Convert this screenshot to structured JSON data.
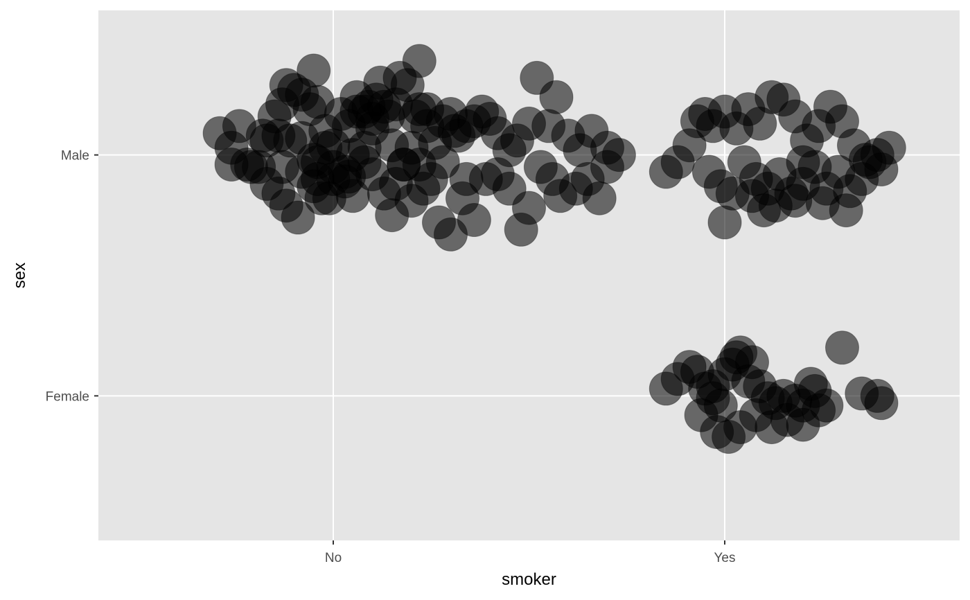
{
  "chart_data": {
    "type": "scatter",
    "title": "",
    "xlabel": "smoker",
    "ylabel": "sex",
    "x_categories": [
      "No",
      "Yes"
    ],
    "y_categories": [
      "Female",
      "Male"
    ],
    "x_range": [
      0.4,
      2.6
    ],
    "y_range": [
      0.4,
      2.6
    ],
    "grid": true,
    "colors": {
      "panel": "#e5e5e5",
      "grid": "#ffffff",
      "point": "#000000",
      "point_opacity": 0.55
    },
    "points": [
      {
        "x": 0.71,
        "y": 2.09
      },
      {
        "x": 0.74,
        "y": 1.96
      },
      {
        "x": 0.76,
        "y": 2.12
      },
      {
        "x": 0.82,
        "y": 2.08
      },
      {
        "x": 0.85,
        "y": 2.16
      },
      {
        "x": 0.87,
        "y": 2.21
      },
      {
        "x": 0.88,
        "y": 2.29
      },
      {
        "x": 0.9,
        "y": 2.27
      },
      {
        "x": 0.92,
        "y": 2.25
      },
      {
        "x": 0.94,
        "y": 2.19
      },
      {
        "x": 0.95,
        "y": 2.35
      },
      {
        "x": 0.96,
        "y": 2.22
      },
      {
        "x": 0.98,
        "y": 2.1
      },
      {
        "x": 1.0,
        "y": 2.04
      },
      {
        "x": 1.02,
        "y": 2.17
      },
      {
        "x": 1.04,
        "y": 2.12
      },
      {
        "x": 1.06,
        "y": 2.18
      },
      {
        "x": 1.08,
        "y": 2.03
      },
      {
        "x": 1.1,
        "y": 2.11
      },
      {
        "x": 1.12,
        "y": 2.3
      },
      {
        "x": 1.14,
        "y": 2.16
      },
      {
        "x": 1.17,
        "y": 2.32
      },
      {
        "x": 1.19,
        "y": 2.29
      },
      {
        "x": 1.22,
        "y": 2.39
      },
      {
        "x": 1.24,
        "y": 2.19
      },
      {
        "x": 1.26,
        "y": 2.05
      },
      {
        "x": 1.28,
        "y": 2.14
      },
      {
        "x": 1.3,
        "y": 2.17
      },
      {
        "x": 1.32,
        "y": 2.08
      },
      {
        "x": 1.34,
        "y": 2.12
      },
      {
        "x": 1.36,
        "y": 2.14
      },
      {
        "x": 1.38,
        "y": 2.18
      },
      {
        "x": 1.4,
        "y": 2.15
      },
      {
        "x": 1.42,
        "y": 2.09
      },
      {
        "x": 1.45,
        "y": 2.02
      },
      {
        "x": 1.47,
        "y": 2.06
      },
      {
        "x": 1.5,
        "y": 2.13
      },
      {
        "x": 1.52,
        "y": 2.32
      },
      {
        "x": 1.55,
        "y": 2.12
      },
      {
        "x": 1.57,
        "y": 2.24
      },
      {
        "x": 1.6,
        "y": 2.08
      },
      {
        "x": 1.63,
        "y": 2.02
      },
      {
        "x": 1.66,
        "y": 2.1
      },
      {
        "x": 1.7,
        "y": 2.03
      },
      {
        "x": 1.73,
        "y": 2.0
      },
      {
        "x": 0.78,
        "y": 1.96
      },
      {
        "x": 0.83,
        "y": 1.88
      },
      {
        "x": 0.88,
        "y": 1.79
      },
      {
        "x": 0.91,
        "y": 1.74
      },
      {
        "x": 0.95,
        "y": 1.87
      },
      {
        "x": 0.97,
        "y": 1.82
      },
      {
        "x": 1.0,
        "y": 1.95
      },
      {
        "x": 1.03,
        "y": 1.89
      },
      {
        "x": 1.05,
        "y": 1.83
      },
      {
        "x": 1.08,
        "y": 1.97
      },
      {
        "x": 1.1,
        "y": 1.92
      },
      {
        "x": 1.13,
        "y": 1.84
      },
      {
        "x": 1.16,
        "y": 1.88
      },
      {
        "x": 1.18,
        "y": 1.96
      },
      {
        "x": 1.2,
        "y": 1.81
      },
      {
        "x": 1.23,
        "y": 1.86
      },
      {
        "x": 1.27,
        "y": 1.72
      },
      {
        "x": 1.3,
        "y": 1.67
      },
      {
        "x": 1.33,
        "y": 1.82
      },
      {
        "x": 1.36,
        "y": 1.73
      },
      {
        "x": 1.39,
        "y": 1.9
      },
      {
        "x": 1.42,
        "y": 1.92
      },
      {
        "x": 1.45,
        "y": 1.86
      },
      {
        "x": 1.48,
        "y": 1.69
      },
      {
        "x": 1.5,
        "y": 1.78
      },
      {
        "x": 1.53,
        "y": 1.95
      },
      {
        "x": 1.56,
        "y": 1.9
      },
      {
        "x": 1.58,
        "y": 1.83
      },
      {
        "x": 1.62,
        "y": 1.86
      },
      {
        "x": 1.65,
        "y": 1.9
      },
      {
        "x": 1.68,
        "y": 1.82
      },
      {
        "x": 1.7,
        "y": 1.95
      },
      {
        "x": 0.86,
        "y": 1.84
      },
      {
        "x": 0.92,
        "y": 1.93
      },
      {
        "x": 1.15,
        "y": 1.75
      },
      {
        "x": 1.85,
        "y": 1.93
      },
      {
        "x": 1.88,
        "y": 1.97
      },
      {
        "x": 1.91,
        "y": 2.04
      },
      {
        "x": 1.93,
        "y": 2.14
      },
      {
        "x": 1.95,
        "y": 2.17
      },
      {
        "x": 1.97,
        "y": 2.12
      },
      {
        "x": 2.0,
        "y": 2.18
      },
      {
        "x": 2.03,
        "y": 2.11
      },
      {
        "x": 2.06,
        "y": 2.19
      },
      {
        "x": 2.09,
        "y": 2.13
      },
      {
        "x": 2.12,
        "y": 2.24
      },
      {
        "x": 2.15,
        "y": 2.23
      },
      {
        "x": 2.18,
        "y": 2.16
      },
      {
        "x": 2.21,
        "y": 2.06
      },
      {
        "x": 2.24,
        "y": 2.12
      },
      {
        "x": 2.27,
        "y": 2.2
      },
      {
        "x": 2.3,
        "y": 2.14
      },
      {
        "x": 2.33,
        "y": 2.04
      },
      {
        "x": 2.36,
        "y": 1.98
      },
      {
        "x": 2.39,
        "y": 2.0
      },
      {
        "x": 2.42,
        "y": 2.03
      },
      {
        "x": 1.96,
        "y": 1.93
      },
      {
        "x": 1.99,
        "y": 1.87
      },
      {
        "x": 2.02,
        "y": 1.84
      },
      {
        "x": 2.05,
        "y": 1.97
      },
      {
        "x": 2.08,
        "y": 1.9
      },
      {
        "x": 2.11,
        "y": 1.86
      },
      {
        "x": 2.14,
        "y": 1.92
      },
      {
        "x": 2.17,
        "y": 1.84
      },
      {
        "x": 2.2,
        "y": 1.88
      },
      {
        "x": 2.23,
        "y": 1.95
      },
      {
        "x": 2.26,
        "y": 1.86
      },
      {
        "x": 2.29,
        "y": 1.93
      },
      {
        "x": 2.32,
        "y": 1.85
      },
      {
        "x": 2.35,
        "y": 1.9
      },
      {
        "x": 2.37,
        "y": 1.97
      },
      {
        "x": 2.4,
        "y": 1.94
      },
      {
        "x": 2.0,
        "y": 1.72
      },
      {
        "x": 2.1,
        "y": 1.77
      },
      {
        "x": 2.13,
        "y": 1.79
      },
      {
        "x": 2.25,
        "y": 1.8
      },
      {
        "x": 2.31,
        "y": 1.77
      },
      {
        "x": 2.18,
        "y": 1.81
      },
      {
        "x": 2.07,
        "y": 1.83
      },
      {
        "x": 2.2,
        "y": 1.97
      },
      {
        "x": 0.74,
        "y": 2.03
      },
      {
        "x": 0.79,
        "y": 1.95
      },
      {
        "x": 0.83,
        "y": 2.06
      },
      {
        "x": 0.86,
        "y": 2.08
      },
      {
        "x": 0.89,
        "y": 2.06
      },
      {
        "x": 0.92,
        "y": 2.07
      },
      {
        "x": 0.95,
        "y": 1.98
      },
      {
        "x": 0.98,
        "y": 2.03
      },
      {
        "x": 1.0,
        "y": 1.9
      },
      {
        "x": 1.03,
        "y": 1.93
      },
      {
        "x": 1.06,
        "y": 2.24
      },
      {
        "x": 1.08,
        "y": 2.18
      },
      {
        "x": 1.1,
        "y": 2.15
      },
      {
        "x": 1.13,
        "y": 2.2
      },
      {
        "x": 1.15,
        "y": 2.04
      },
      {
        "x": 1.18,
        "y": 1.96
      },
      {
        "x": 1.2,
        "y": 2.03
      },
      {
        "x": 1.22,
        "y": 1.96
      },
      {
        "x": 1.25,
        "y": 1.9
      },
      {
        "x": 1.28,
        "y": 1.97
      },
      {
        "x": 1.31,
        "y": 2.1
      },
      {
        "x": 0.96,
        "y": 1.97
      },
      {
        "x": 1.05,
        "y": 2.0
      },
      {
        "x": 1.16,
        "y": 2.21
      },
      {
        "x": 1.21,
        "y": 2.16
      },
      {
        "x": 1.11,
        "y": 2.23
      },
      {
        "x": 1.09,
        "y": 2.2
      },
      {
        "x": 1.22,
        "y": 2.19
      },
      {
        "x": 1.34,
        "y": 1.9
      },
      {
        "x": 1.04,
        "y": 1.91
      },
      {
        "x": 0.96,
        "y": 1.9
      },
      {
        "x": 0.87,
        "y": 1.95
      },
      {
        "x": 0.99,
        "y": 1.82
      },
      {
        "x": 0.81,
        "y": 1.95
      },
      {
        "x": 1.24,
        "y": 2.12
      },
      {
        "x": 1.85,
        "y": 1.03
      },
      {
        "x": 1.88,
        "y": 1.07
      },
      {
        "x": 1.91,
        "y": 1.12
      },
      {
        "x": 1.93,
        "y": 1.1
      },
      {
        "x": 1.95,
        "y": 1.03
      },
      {
        "x": 1.97,
        "y": 0.99
      },
      {
        "x": 1.99,
        "y": 0.96
      },
      {
        "x": 2.02,
        "y": 1.13
      },
      {
        "x": 2.04,
        "y": 1.18
      },
      {
        "x": 2.06,
        "y": 1.06
      },
      {
        "x": 2.09,
        "y": 1.04
      },
      {
        "x": 2.11,
        "y": 0.99
      },
      {
        "x": 2.13,
        "y": 0.97
      },
      {
        "x": 2.15,
        "y": 1.0
      },
      {
        "x": 2.18,
        "y": 0.98
      },
      {
        "x": 2.2,
        "y": 0.96
      },
      {
        "x": 2.23,
        "y": 1.02
      },
      {
        "x": 2.26,
        "y": 0.96
      },
      {
        "x": 2.3,
        "y": 1.2
      },
      {
        "x": 2.35,
        "y": 1.01
      },
      {
        "x": 2.39,
        "y": 1.0
      },
      {
        "x": 2.4,
        "y": 0.97
      },
      {
        "x": 1.94,
        "y": 0.92
      },
      {
        "x": 1.98,
        "y": 0.85
      },
      {
        "x": 2.01,
        "y": 0.83
      },
      {
        "x": 2.04,
        "y": 0.87
      },
      {
        "x": 2.08,
        "y": 0.92
      },
      {
        "x": 2.12,
        "y": 0.87
      },
      {
        "x": 2.16,
        "y": 0.9
      },
      {
        "x": 2.2,
        "y": 0.88
      },
      {
        "x": 2.24,
        "y": 0.94
      },
      {
        "x": 1.97,
        "y": 1.04
      },
      {
        "x": 2.0,
        "y": 1.09
      },
      {
        "x": 2.07,
        "y": 1.14
      },
      {
        "x": 2.03,
        "y": 1.16
      },
      {
        "x": 2.22,
        "y": 1.05
      }
    ]
  },
  "x_axis": {
    "tick_labels": [
      "No",
      "Yes"
    ],
    "title": "smoker"
  },
  "y_axis": {
    "tick_labels": [
      "Female",
      "Male"
    ],
    "title": "sex"
  }
}
